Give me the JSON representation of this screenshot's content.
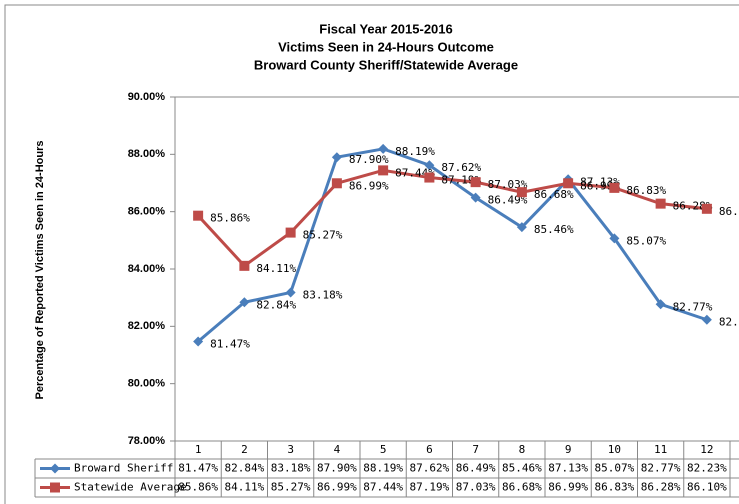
{
  "chart_data": {
    "type": "line",
    "title": [
      "Fiscal Year 2015-2016",
      "Victims Seen in 24-Hours Outcome",
      "Broward County Sheriff/Statewide Average"
    ],
    "y_label": "Percentage of Reported Victims Seen in 24-Hours",
    "categories": [
      "1",
      "2",
      "3",
      "4",
      "5",
      "6",
      "7",
      "8",
      "9",
      "10",
      "11",
      "12"
    ],
    "series": [
      {
        "name": "Broward Sheriff",
        "color": "#4a7ebb",
        "marker": "diamond",
        "values": [
          81.47,
          82.84,
          83.18,
          87.9,
          88.19,
          87.62,
          86.49,
          85.46,
          87.13,
          85.07,
          82.77,
          82.23
        ],
        "value_labels": [
          "81.47%",
          "82.84%",
          "83.18%",
          "87.90%",
          "88.19%",
          "87.62%",
          "86.49%",
          "85.46%",
          "87.13%",
          "85.07%",
          "82.77%",
          "82.23%"
        ]
      },
      {
        "name": "Statewide Average",
        "color": "#be4b48",
        "marker": "square",
        "values": [
          85.86,
          84.11,
          85.27,
          86.99,
          87.44,
          87.19,
          87.03,
          86.68,
          86.99,
          86.83,
          86.28,
          86.1
        ],
        "value_labels": [
          "85.86%",
          "84.11%",
          "85.27%",
          "86.99%",
          "87.44%",
          "87.19%",
          "87.03%",
          "86.68%",
          "86.99%",
          "86.83%",
          "86.28%",
          "86.10%"
        ]
      }
    ],
    "ylim": [
      78,
      90
    ],
    "yticks": [
      {
        "value": 78,
        "label": "78.00%"
      },
      {
        "value": 80,
        "label": "80.00%"
      },
      {
        "value": 82,
        "label": "82.00%"
      },
      {
        "value": 84,
        "label": "84.00%"
      },
      {
        "value": 86,
        "label": "86.00%"
      },
      {
        "value": 88,
        "label": "88.00%"
      },
      {
        "value": 90,
        "label": "90.00%"
      }
    ],
    "grid": false
  }
}
